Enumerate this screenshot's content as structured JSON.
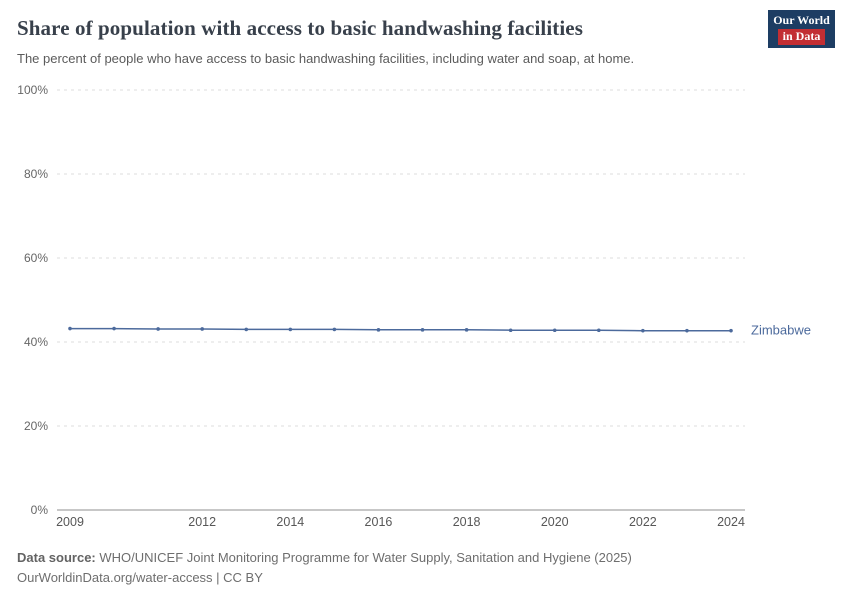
{
  "header": {
    "title": "Share of population with access to basic handwashing facilities",
    "subtitle": "The percent of people who have access to basic handwashing facilities, including water and soap, at home.",
    "logo": {
      "line1": "Our World",
      "line2": "in Data"
    }
  },
  "chart_data": {
    "type": "line",
    "title": "Share of population with access to basic handwashing facilities",
    "xlabel": "",
    "ylabel": "",
    "xlim": [
      2009,
      2024
    ],
    "ylim": [
      0,
      100
    ],
    "grid": true,
    "legend": "end-of-line-label",
    "x_ticks": [
      2009,
      2012,
      2014,
      2016,
      2018,
      2020,
      2022,
      2024
    ],
    "x_tick_labels": [
      "2009",
      "2012",
      "2014",
      "2016",
      "2018",
      "2020",
      "2022",
      "2024"
    ],
    "y_ticks": [
      0,
      20,
      40,
      60,
      80,
      100
    ],
    "y_tick_labels": [
      "0%",
      "20%",
      "40%",
      "60%",
      "80%",
      "100%"
    ],
    "series": [
      {
        "name": "Zimbabwe",
        "color": "#4c6a9c",
        "x": [
          2009,
          2010,
          2011,
          2012,
          2013,
          2014,
          2015,
          2016,
          2017,
          2018,
          2019,
          2020,
          2021,
          2022,
          2023,
          2024
        ],
        "values": [
          43.2,
          43.2,
          43.1,
          43.1,
          43.0,
          43.0,
          43.0,
          42.9,
          42.9,
          42.9,
          42.8,
          42.8,
          42.8,
          42.7,
          42.7,
          42.7
        ]
      }
    ],
    "colors": {
      "gridline": "#dcdcdc",
      "zero_line": "#8f8f8f",
      "tick_label": "#666666",
      "x_label": "#575757"
    }
  },
  "footer": {
    "source_label": "Data source:",
    "source_text": "WHO/UNICEF Joint Monitoring Programme for Water Supply, Sanitation and Hygiene (2025)",
    "citation": "OurWorldinData.org/water-access | CC BY"
  }
}
